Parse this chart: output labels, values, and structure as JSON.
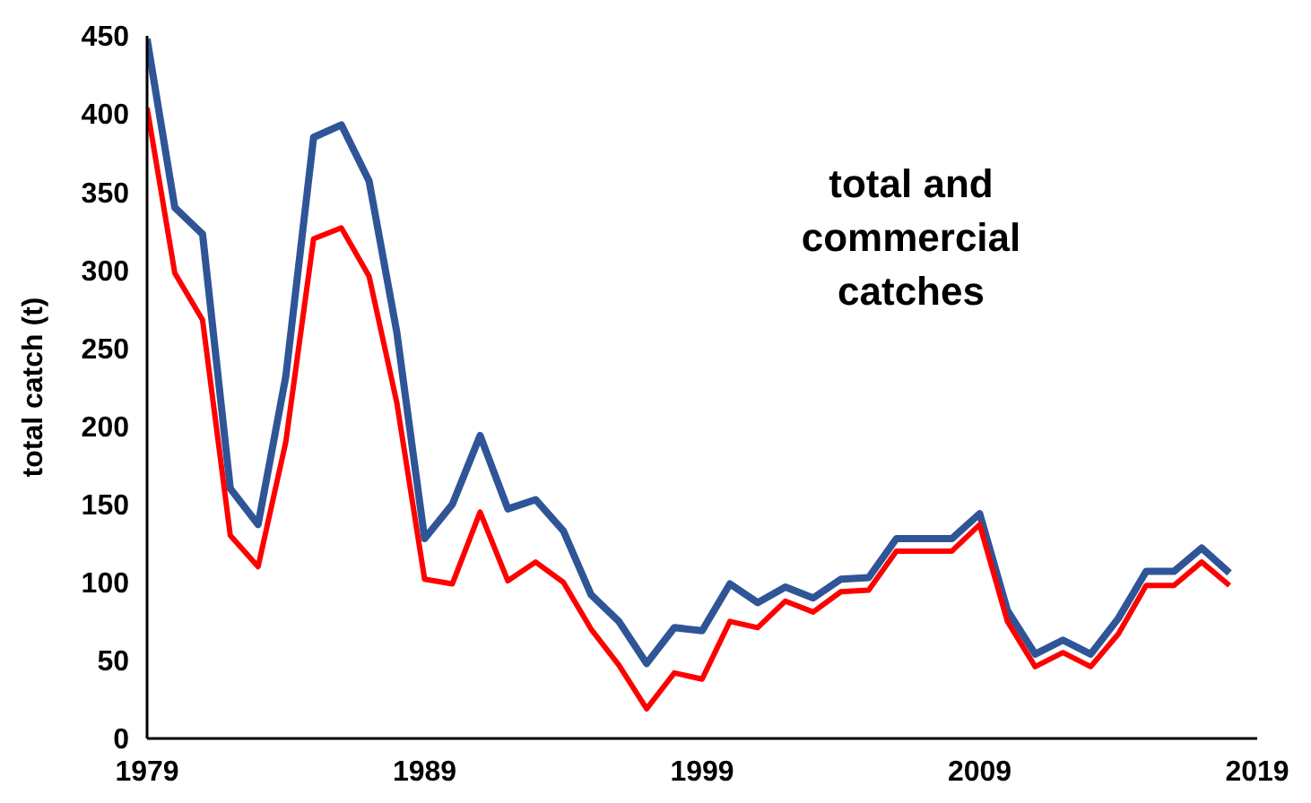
{
  "chart_data": {
    "type": "line",
    "ylabel": "total catch (t)",
    "annotations": [
      "total and commercial catches"
    ],
    "x": [
      1979,
      1980,
      1981,
      1982,
      1983,
      1984,
      1985,
      1986,
      1987,
      1988,
      1989,
      1990,
      1991,
      1992,
      1993,
      1994,
      1995,
      1996,
      1997,
      1998,
      1999,
      2000,
      2001,
      2002,
      2003,
      2004,
      2005,
      2006,
      2007,
      2008,
      2009,
      2010,
      2011,
      2012,
      2013,
      2014,
      2015,
      2016,
      2017,
      2018
    ],
    "series": [
      {
        "color": "#2f5597",
        "values": [
          448,
          340,
          323,
          160,
          137,
          232,
          385,
          393,
          357,
          260,
          128,
          150,
          194,
          147,
          153,
          133,
          92,
          75,
          48,
          71,
          69,
          99,
          87,
          97,
          90,
          102,
          103,
          128,
          128,
          128,
          144,
          82,
          54,
          63,
          54,
          77,
          107,
          107,
          122,
          106
        ]
      },
      {
        "color": "#ff0000",
        "values": [
          404,
          298,
          268,
          130,
          110,
          190,
          320,
          327,
          296,
          215,
          102,
          99,
          145,
          101,
          113,
          100,
          70,
          47,
          19,
          42,
          38,
          75,
          71,
          88,
          81,
          94,
          95,
          120,
          120,
          120,
          137,
          75,
          46,
          55,
          46,
          67,
          98,
          98,
          113,
          98
        ]
      }
    ],
    "xlim": [
      1979,
      2019
    ],
    "xticks": [
      1979,
      1989,
      1999,
      2009,
      2019
    ],
    "ylim": [
      0,
      450
    ],
    "yticks": [
      0,
      50,
      100,
      150,
      200,
      250,
      300,
      350,
      400,
      450
    ],
    "grid": false,
    "legend": false,
    "marker": "none",
    "line_style": "solid"
  }
}
